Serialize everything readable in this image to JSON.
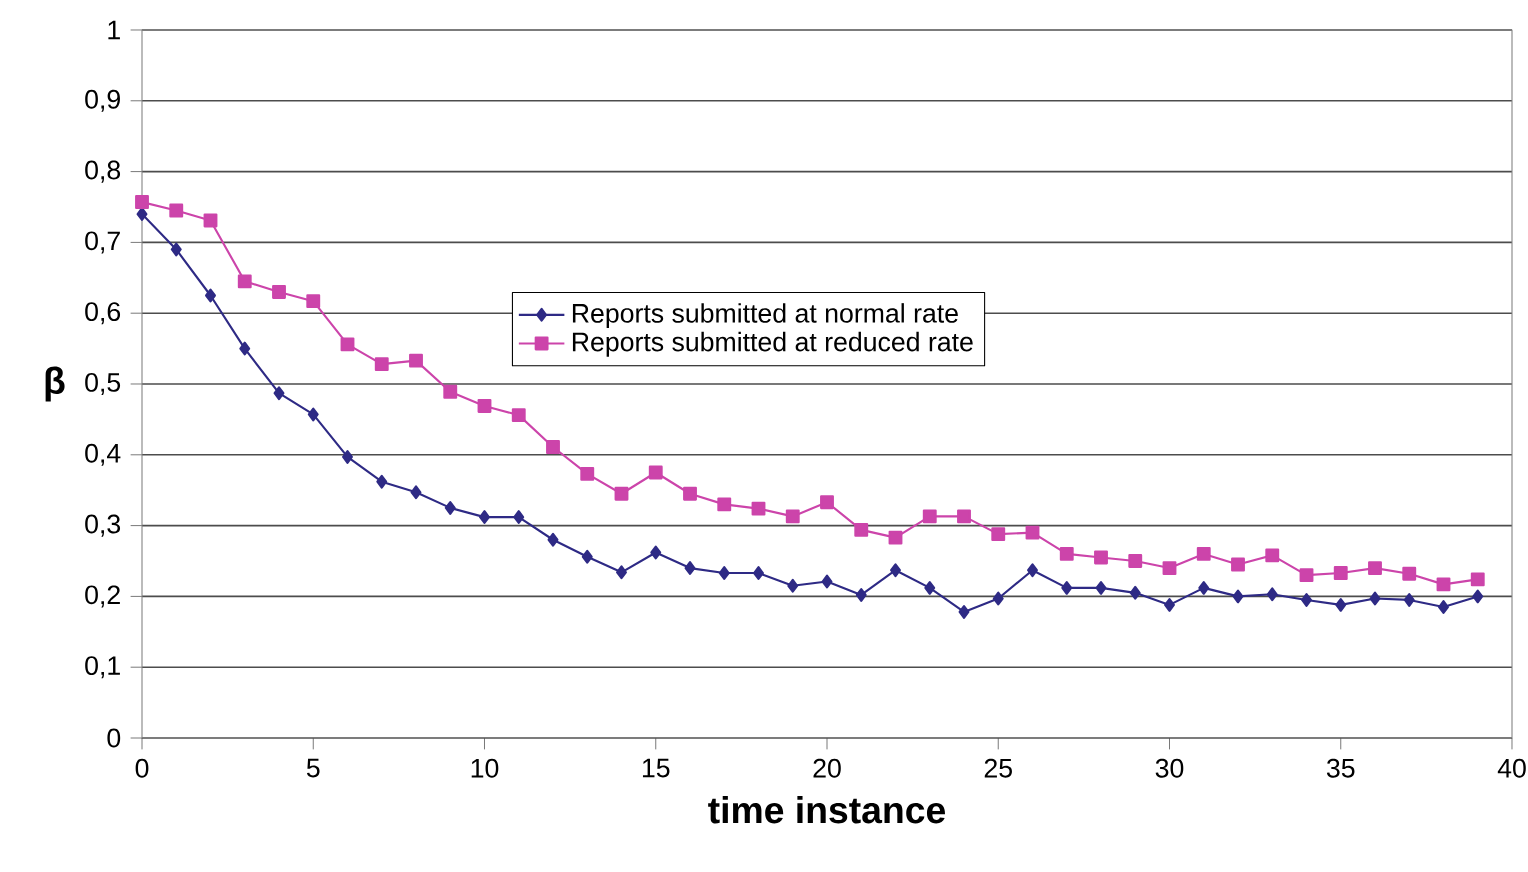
{
  "chart_data": {
    "type": "line",
    "xlabel": "time instance",
    "ylabel": "β",
    "x": [
      0,
      1,
      2,
      3,
      4,
      5,
      6,
      7,
      8,
      9,
      10,
      11,
      12,
      13,
      14,
      15,
      16,
      17,
      18,
      19,
      20,
      21,
      22,
      23,
      24,
      25,
      26,
      27,
      28,
      29,
      30,
      31,
      32,
      33,
      34,
      35,
      36,
      37,
      38,
      39
    ],
    "series": [
      {
        "name": "Reports submitted at normal rate",
        "color": "#2e2a85",
        "marker": "diamond",
        "values": [
          0.74,
          0.69,
          0.625,
          0.55,
          0.487,
          0.457,
          0.397,
          0.362,
          0.347,
          0.325,
          0.312,
          0.312,
          0.28,
          0.256,
          0.234,
          0.262,
          0.24,
          0.233,
          0.233,
          0.215,
          0.221,
          0.202,
          0.237,
          0.212,
          0.178,
          0.197,
          0.237,
          0.212,
          0.212,
          0.205,
          0.188,
          0.212,
          0.2,
          0.203,
          0.195,
          0.188,
          0.197,
          0.195,
          0.185,
          0.2
        ]
      },
      {
        "name": "Reports submitted at reduced rate",
        "color": "#cc44aa",
        "marker": "square",
        "values": [
          0.757,
          0.745,
          0.731,
          0.645,
          0.63,
          0.617,
          0.556,
          0.528,
          0.533,
          0.489,
          0.469,
          0.456,
          0.411,
          0.373,
          0.345,
          0.375,
          0.345,
          0.33,
          0.324,
          0.313,
          0.333,
          0.294,
          0.283,
          0.313,
          0.313,
          0.288,
          0.29,
          0.26,
          0.255,
          0.25,
          0.24,
          0.26,
          0.245,
          0.258,
          0.23,
          0.233,
          0.24,
          0.232,
          0.217,
          0.224
        ]
      }
    ],
    "xlim": [
      0,
      40
    ],
    "xticks": [
      0,
      5,
      10,
      15,
      20,
      25,
      30,
      35,
      40
    ],
    "ylim": [
      0,
      1
    ],
    "yticks": [
      0,
      {
        "value": 0.1,
        "label": "0,1"
      },
      {
        "value": 0.2,
        "label": "0,2"
      },
      {
        "value": 0.3,
        "label": "0,3"
      },
      {
        "value": 0.4,
        "label": "0,4"
      },
      {
        "value": 0.5,
        "label": "0,5"
      },
      {
        "value": 0.6,
        "label": "0,6"
      },
      {
        "value": 0.7,
        "label": "0,7"
      },
      {
        "value": 0.8,
        "label": "0,8"
      },
      {
        "value": 0.9,
        "label": "0,9"
      },
      1
    ],
    "grid": "y",
    "legend": "center",
    "line_style": "solid"
  }
}
